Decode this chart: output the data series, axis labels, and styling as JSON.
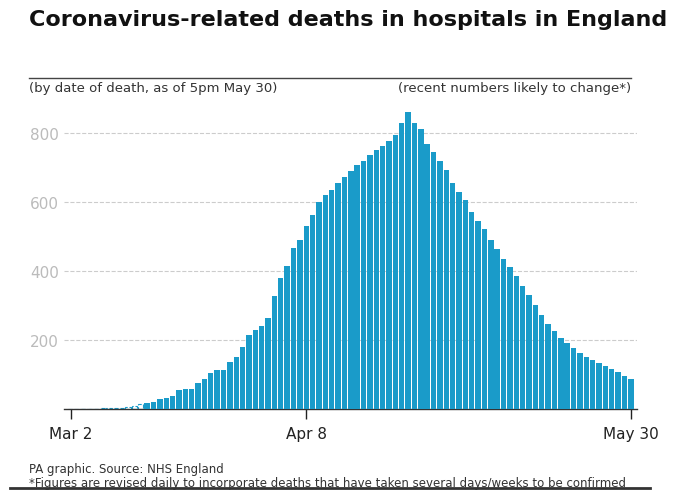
{
  "title": "Coronavirus-related deaths in hospitals in England",
  "subtitle_left": "(by date of death, as of 5pm May 30)",
  "subtitle_right": "(recent numbers likely to change*)",
  "footer1": "PA graphic. Source: NHS England",
  "footer2": "*Figures are revised daily to incorporate deaths that have taken several days/weeks to be confirmed",
  "bar_color": "#1a9bc9",
  "background_color": "#ffffff",
  "yticks": [
    200,
    400,
    600,
    800
  ],
  "ytick_color": "#bbbbbb",
  "grid_color": "#cccccc",
  "xtick_labels": [
    "Mar 2",
    "Apr 8",
    "May 30"
  ],
  "xtick_positions": [
    0,
    37,
    88
  ],
  "ylim": [
    0,
    880
  ],
  "title_fontsize": 16,
  "subtitle_fontsize": 9.5,
  "footer_fontsize": 8.5,
  "values": [
    0,
    0,
    1,
    2,
    1,
    3,
    5,
    3,
    5,
    8,
    11,
    16,
    17,
    21,
    31,
    33,
    40,
    56,
    60,
    59,
    75,
    87,
    104,
    115,
    114,
    136,
    152,
    180,
    214,
    231,
    241,
    264,
    327,
    381,
    415,
    467,
    490,
    530,
    563,
    601,
    620,
    634,
    655,
    672,
    690,
    708,
    719,
    736,
    751,
    763,
    778,
    796,
    828,
    861,
    828,
    813,
    768,
    745,
    720,
    694,
    656,
    630,
    607,
    571,
    546,
    521,
    491,
    465,
    434,
    411,
    385,
    356,
    331,
    301,
    272,
    246,
    227,
    208,
    191,
    178,
    163,
    151,
    143,
    135,
    126,
    118,
    108,
    97,
    87
  ],
  "dashed_indices": [
    0,
    1,
    2,
    3,
    4,
    5,
    6,
    7,
    8,
    9,
    10,
    11
  ]
}
